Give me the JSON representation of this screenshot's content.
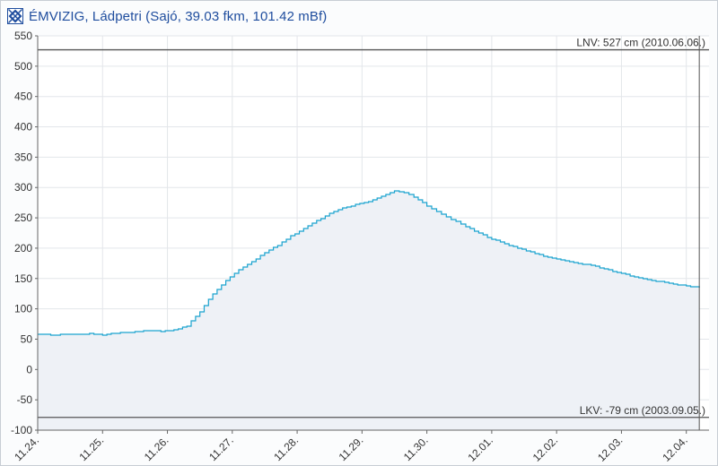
{
  "window": {
    "title": "ÉMVIZIG, Ládpetri (Sajó, 39.03 fkm, 101.42 mBf)",
    "logo_icon": "emvizig-logo-icon"
  },
  "colors": {
    "line": "#1aa3cf",
    "fill": "#eef1f6",
    "grid": "#e3e6ea",
    "ref_line": "#555555",
    "title": "#1f4d9e"
  },
  "chart_data": {
    "type": "area",
    "title": "ÉMVIZIG, Ládpetri (Sajó, 39.03 fkm, 101.42 mBf)",
    "xlabel": "",
    "ylabel": "",
    "ylim": [
      -100,
      550
    ],
    "yticks": [
      -100,
      -50,
      0,
      50,
      100,
      150,
      200,
      250,
      300,
      350,
      400,
      450,
      500,
      550
    ],
    "xlim": [
      0,
      10.35
    ],
    "xticks": [
      {
        "x": 0,
        "label": "11.24."
      },
      {
        "x": 1,
        "label": "11.25."
      },
      {
        "x": 2,
        "label": "11.26."
      },
      {
        "x": 3,
        "label": "11.27."
      },
      {
        "x": 4,
        "label": "11.28."
      },
      {
        "x": 5,
        "label": "11.29."
      },
      {
        "x": 6,
        "label": "11.30."
      },
      {
        "x": 7,
        "label": "12.01."
      },
      {
        "x": 8,
        "label": "12.02."
      },
      {
        "x": 9,
        "label": "12.03."
      },
      {
        "x": 10,
        "label": "12.04."
      }
    ],
    "grid": true,
    "series": [
      {
        "values_x": [
          0,
          0.2,
          0.5,
          0.8,
          1.0,
          1.2,
          1.5,
          1.7,
          1.9,
          2.1,
          2.3,
          2.5,
          2.7,
          2.9,
          3.1,
          3.3,
          3.5,
          3.7,
          3.9,
          4.1,
          4.3,
          4.5,
          4.7,
          4.9,
          5.1,
          5.3,
          5.5,
          5.65,
          5.8,
          6.0,
          6.3,
          6.6,
          7.0,
          7.4,
          7.8,
          8.2,
          8.6,
          9.0,
          9.4,
          9.8,
          10.2
        ],
        "values_y": [
          58,
          57,
          58,
          59,
          57,
          60,
          62,
          64,
          63,
          65,
          72,
          95,
          125,
          147,
          165,
          178,
          192,
          205,
          220,
          232,
          245,
          258,
          266,
          272,
          276,
          285,
          294,
          292,
          284,
          270,
          252,
          235,
          215,
          200,
          187,
          178,
          170,
          158,
          148,
          141,
          135
        ]
      }
    ],
    "reference_lines": [
      {
        "y": 527,
        "label": "LNV: 527 cm (2010.06.06.)"
      },
      {
        "y": -79,
        "label": "LKV: -79 cm (2003.09.05.)"
      }
    ],
    "vertical_line_x": 10.2
  }
}
